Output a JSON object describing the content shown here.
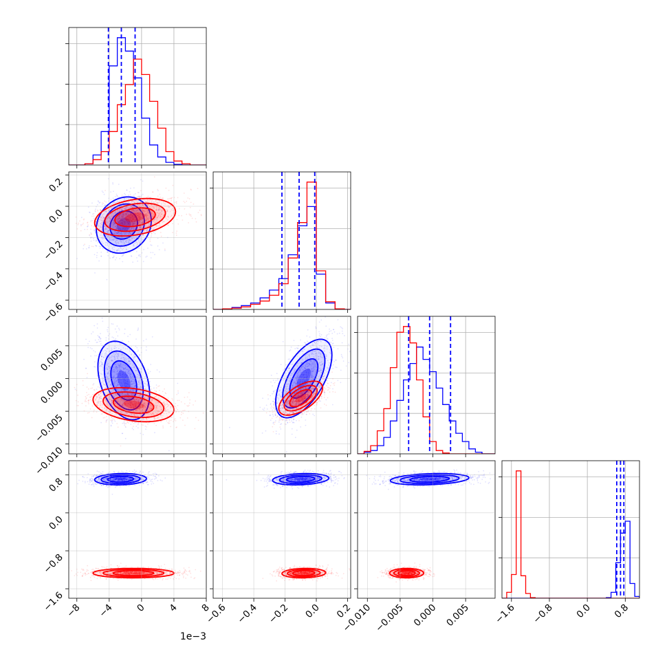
{
  "chart_data": {
    "type": "corner",
    "parameters": 4,
    "series": [
      {
        "color": "#0000ff"
      },
      {
        "color": "#ff0000"
      }
    ],
    "axes": [
      {
        "range": [
          -0.009,
          0.008
        ],
        "ticks": [
          -0.008,
          -0.004,
          0.0,
          0.004,
          0.008
        ],
        "tick_labels": [
          "−8",
          "−4",
          "0",
          "4",
          "8"
        ],
        "offset_text": "1e−3"
      },
      {
        "range": [
          -0.66,
          0.22
        ],
        "ticks": [
          -0.6,
          -0.4,
          -0.2,
          0.0,
          0.2
        ],
        "tick_labels": [
          "−0.6",
          "−0.4",
          "−0.2",
          "0.0",
          "0.2"
        ]
      },
      {
        "range": [
          -0.0115,
          0.0095
        ],
        "ticks": [
          -0.01,
          -0.005,
          0.0,
          0.005
        ],
        "tick_labels": [
          "−0.010",
          "−0.005",
          "0.000",
          "0.005"
        ]
      },
      {
        "range": [
          -1.8,
          1.1
        ],
        "ticks": [
          -1.6,
          -0.8,
          0.0,
          0.8
        ],
        "tick_labels": [
          "−1.6",
          "−0.8",
          "0.0",
          "0.8"
        ]
      }
    ],
    "quantiles_blue": [
      [
        -0.0041,
        -0.0025,
        -0.0008
      ],
      [
        -0.22,
        -0.11,
        -0.01
      ],
      [
        -0.0037,
        -0.0005,
        0.0027
      ],
      [
        0.62,
        0.7,
        0.77
      ]
    ],
    "marginals": [
      {
        "bins": [
          -0.009,
          -0.008,
          -0.007,
          -0.006,
          -0.005,
          -0.004,
          -0.003,
          -0.002,
          -0.001,
          0.0,
          0.001,
          0.002,
          0.003,
          0.004,
          0.005,
          0.006,
          0.007,
          0.008
        ],
        "blue": [
          0,
          0,
          2,
          15,
          50,
          148,
          190,
          170,
          130,
          70,
          30,
          12,
          4,
          1,
          0,
          0,
          0
        ],
        "red": [
          0,
          0,
          2,
          8,
          20,
          50,
          90,
          120,
          158,
          135,
          95,
          55,
          20,
          6,
          2,
          0,
          0
        ]
      },
      {
        "bins": [
          -0.66,
          -0.6,
          -0.54,
          -0.48,
          -0.42,
          -0.36,
          -0.3,
          -0.24,
          -0.18,
          -0.12,
          -0.06,
          0.0,
          0.06,
          0.12,
          0.18,
          0.22
        ],
        "blue": [
          0,
          1,
          3,
          6,
          10,
          18,
          30,
          48,
          85,
          130,
          160,
          55,
          10,
          1,
          0
        ],
        "red": [
          0,
          1,
          2,
          4,
          8,
          13,
          22,
          40,
          80,
          135,
          198,
          60,
          12,
          1,
          0
        ]
      },
      {
        "bins": [
          -0.0115,
          -0.0105,
          -0.0095,
          -0.0085,
          -0.0075,
          -0.0065,
          -0.0055,
          -0.0045,
          -0.0035,
          -0.0025,
          -0.0015,
          -0.0005,
          0.0005,
          0.0015,
          0.0025,
          0.0035,
          0.0045,
          0.0055,
          0.0065,
          0.0075,
          0.0085,
          0.0095
        ],
        "blue": [
          0,
          2,
          4,
          10,
          20,
          40,
          65,
          90,
          110,
          130,
          115,
          100,
          80,
          60,
          40,
          25,
          15,
          6,
          2,
          0,
          0
        ],
        "red": [
          0,
          3,
          10,
          28,
          55,
          105,
          148,
          155,
          135,
          90,
          45,
          15,
          4,
          1,
          0,
          0,
          0,
          0,
          0,
          0,
          0
        ]
      },
      {
        "bins": [
          -1.8,
          -1.7,
          -1.6,
          -1.5,
          -1.4,
          -1.3,
          -1.2,
          -1.1,
          -1.0,
          -0.9,
          -0.8,
          -0.7,
          -0.6,
          -0.5,
          -0.4,
          -0.3,
          -0.2,
          -0.1,
          0.0,
          0.1,
          0.2,
          0.3,
          0.4,
          0.5,
          0.6,
          0.7,
          0.8,
          0.9,
          1.0,
          1.1
        ],
        "blue": [
          0,
          0,
          0,
          0,
          0,
          0,
          0,
          0,
          0,
          0,
          0,
          0,
          0,
          0,
          0,
          0,
          0,
          0,
          0,
          0,
          0,
          0,
          1,
          10,
          60,
          110,
          130,
          25,
          3
        ],
        "red": [
          0,
          10,
          40,
          215,
          38,
          8,
          1,
          0,
          0,
          0,
          0,
          0,
          0,
          0,
          0,
          0,
          0,
          0,
          0,
          0,
          0,
          0,
          0,
          0,
          0,
          0,
          0,
          0,
          0
        ]
      }
    ],
    "pairs": [
      {
        "i": 1,
        "j": 0,
        "blue": {
          "mean": [
            -0.0022,
            -0.12
          ],
          "sd": [
            0.0017,
            0.09
          ],
          "rho": 0.15
        },
        "red": {
          "mean": [
            -0.0008,
            -0.07
          ],
          "sd": [
            0.0025,
            0.06
          ],
          "rho": 0.3
        }
      },
      {
        "i": 2,
        "j": 0,
        "blue": {
          "mean": [
            -0.0022,
            -0.0003
          ],
          "sd": [
            0.0016,
            0.003
          ],
          "rho": -0.35
        },
        "red": {
          "mean": [
            -0.001,
            -0.004
          ],
          "sd": [
            0.0025,
            0.0013
          ],
          "rho": -0.3
        }
      },
      {
        "i": 2,
        "j": 1,
        "blue": {
          "mean": [
            -0.08,
            0.0
          ],
          "sd": [
            0.09,
            0.003
          ],
          "rho": 0.6
        },
        "red": {
          "mean": [
            -0.1,
            -0.003
          ],
          "sd": [
            0.07,
            0.0013
          ],
          "rho": 0.6
        }
      },
      {
        "i": 3,
        "j": 0,
        "blue": {
          "mean": [
            -0.0026,
            0.71
          ],
          "sd": [
            0.0016,
            0.06
          ],
          "rho": 0.1
        },
        "red": {
          "mean": [
            -0.001,
            -1.27
          ],
          "sd": [
            0.0025,
            0.05
          ],
          "rho": 0.0
        }
      },
      {
        "i": 3,
        "j": 1,
        "blue": {
          "mean": [
            -0.1,
            0.71
          ],
          "sd": [
            0.09,
            0.06
          ],
          "rho": 0.2
        },
        "red": {
          "mean": [
            -0.08,
            -1.27
          ],
          "sd": [
            0.07,
            0.05
          ],
          "rho": 0.1
        }
      },
      {
        "i": 3,
        "j": 2,
        "blue": {
          "mean": [
            -0.0005,
            0.71
          ],
          "sd": [
            0.003,
            0.06
          ],
          "rho": 0.25
        },
        "red": {
          "mean": [
            -0.004,
            -1.27
          ],
          "sd": [
            0.0013,
            0.05
          ],
          "rho": 0.0
        }
      }
    ]
  }
}
